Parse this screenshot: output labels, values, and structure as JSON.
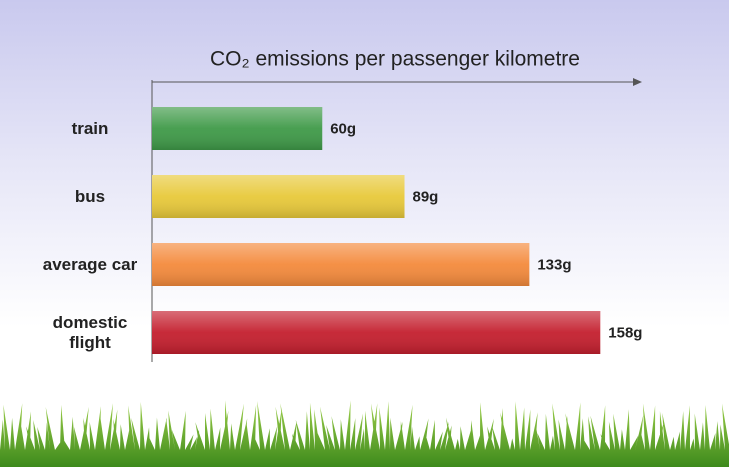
{
  "chart_data": {
    "type": "bar",
    "orientation": "horizontal",
    "title": "CO₂ emissions per passenger kilometre",
    "categories": [
      "train",
      "bus",
      "average car",
      "domestic flight"
    ],
    "values": [
      60,
      89,
      133,
      158
    ],
    "value_labels": [
      "60g",
      "89g",
      "133g",
      "158g"
    ],
    "colors": [
      "#3f9a48",
      "#e8c93a",
      "#f48a3c",
      "#c41f2e"
    ],
    "xlim": [
      0,
      172
    ]
  }
}
